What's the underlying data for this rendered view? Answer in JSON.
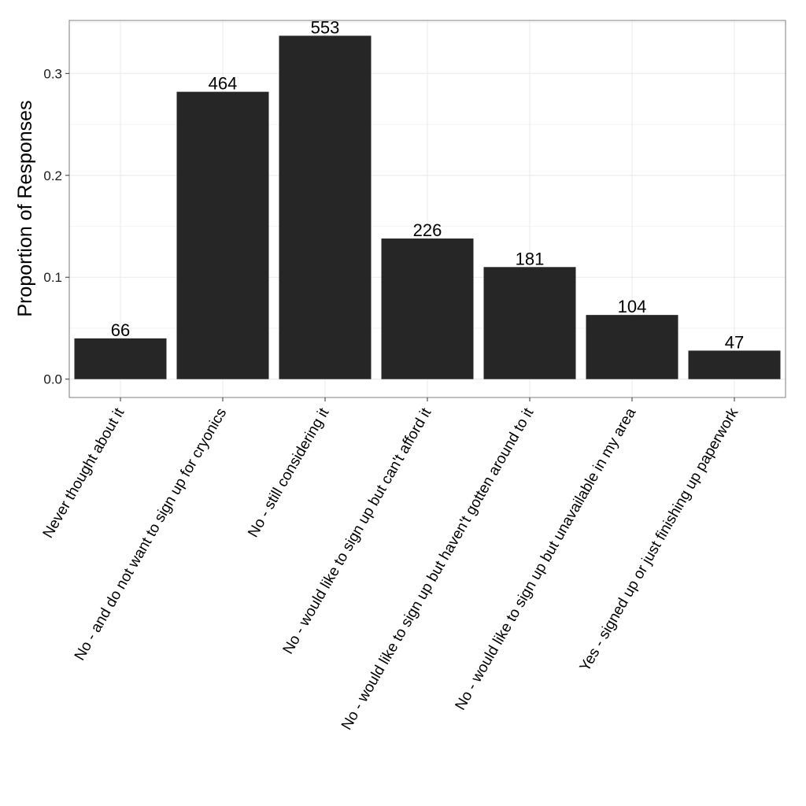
{
  "chart_data": {
    "type": "bar",
    "categories": [
      "Never thought about it",
      "No - and do not want to sign up for cryonics",
      "No - still considering it",
      "No - would like to sign up but can't afford it",
      "No - would like to sign up but haven't gotten around to it",
      "No - would like to sign up but unavailable in my area",
      "Yes - signed up or just finishing up paperwork"
    ],
    "values": [
      0.04,
      0.282,
      0.337,
      0.138,
      0.11,
      0.063,
      0.028
    ],
    "data_labels": [
      "66",
      "464",
      "553",
      "226",
      "181",
      "104",
      "47"
    ],
    "xlabel": "",
    "ylabel": "Proportion of Responses",
    "ylim": [
      -0.018,
      0.352
    ],
    "yticks": [
      0.0,
      0.1,
      0.2,
      0.3
    ],
    "ytick_labels": [
      "0.0",
      "0.1",
      "0.2",
      "0.3"
    ],
    "grid": true,
    "bar_color": "#262626",
    "grid_color": "#ebebeb",
    "panel_border_color": "#7f7f7f"
  }
}
